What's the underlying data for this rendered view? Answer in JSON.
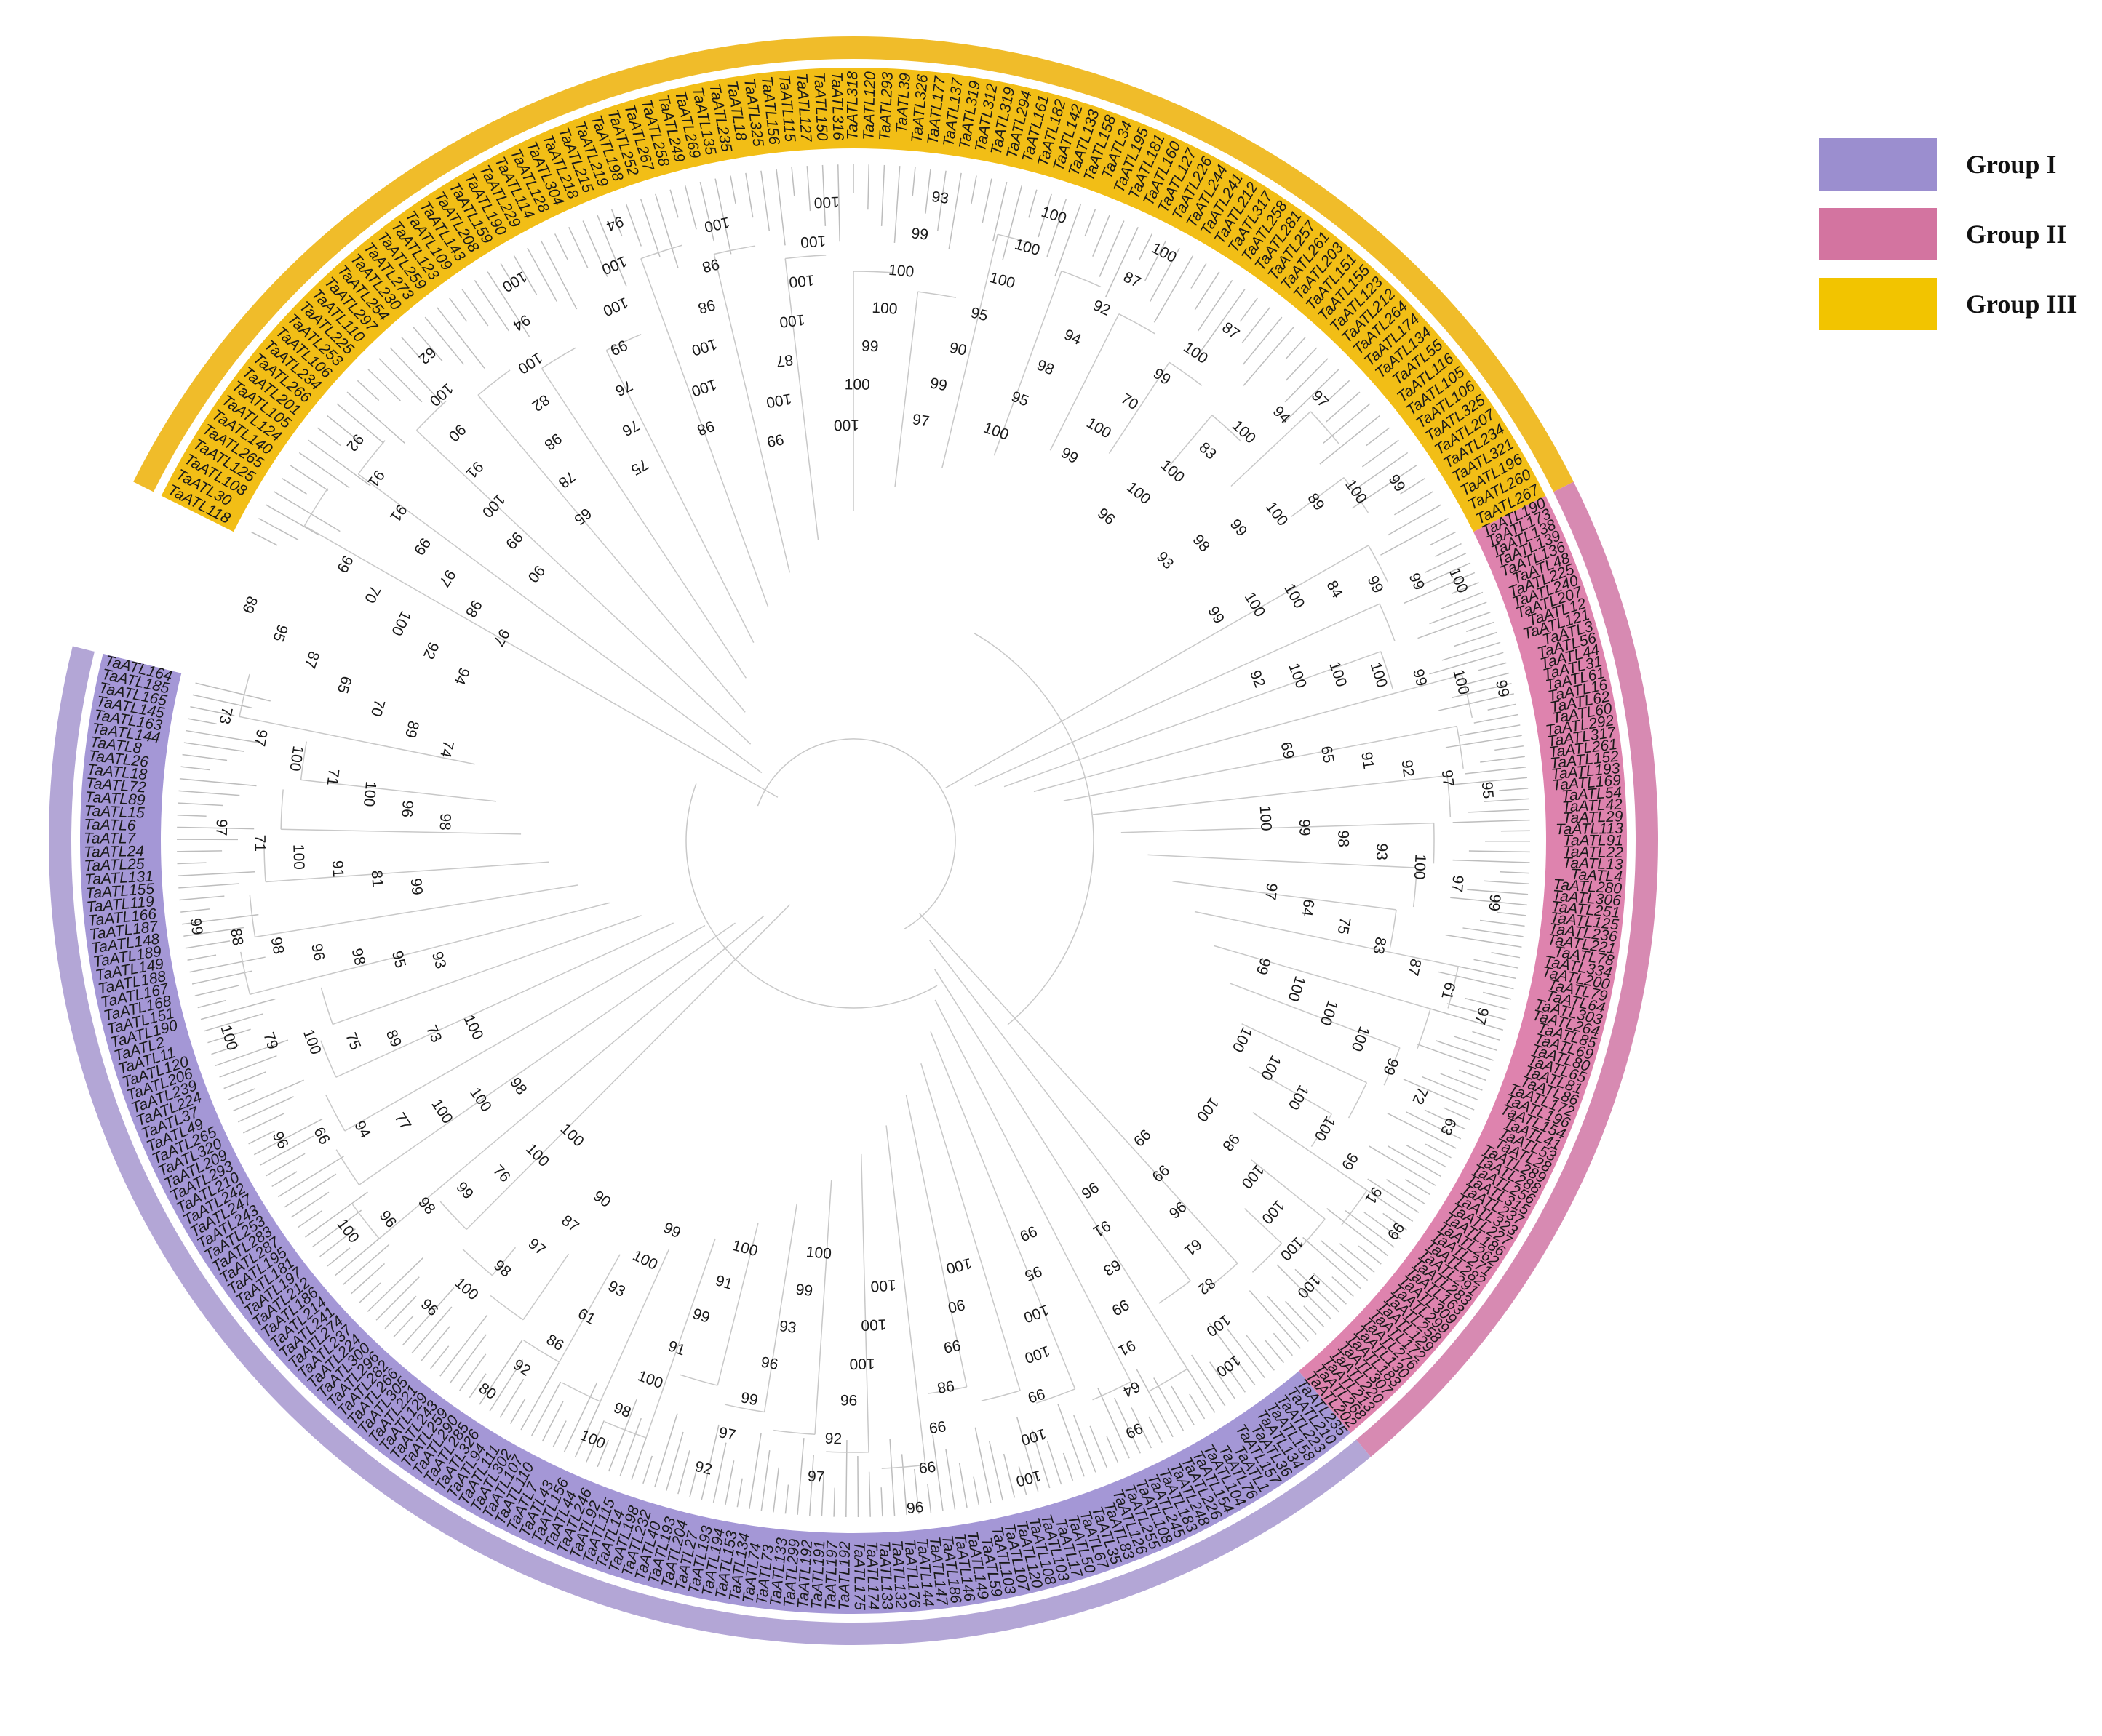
{
  "groups": [
    {
      "label": "Group I",
      "color": "#9b8ecf",
      "ring_color": "#b3a6d6",
      "band_color": "#a497d6"
    },
    {
      "label": "Group II",
      "color": "#d374a0",
      "ring_color": "#d78ab2",
      "band_color": "#de83ae"
    },
    {
      "label": "Group III",
      "color": "#f2c400",
      "ring_color": "#f0bc2a",
      "band_color": "#f2be16"
    }
  ],
  "clades": [
    {
      "group": 2,
      "tips": [
        "TaATL118",
        "TaATL30",
        "TaATL108",
        "TaATL125",
        "TaATL265",
        "TaATL140",
        "TaATL124",
        "TaATL105",
        "TaATL201",
        "TaATL266",
        "TaATL234",
        "TaATL106",
        "TaATL253",
        "TaATL225",
        "TaATL110",
        "TaATL297",
        "TaATL254",
        "TaATL230",
        "TaATL273",
        "TaATL259",
        "TaATL123",
        "TaATL109",
        "TaATL143",
        "TaATL208",
        "TaATL159",
        "TaATL190",
        "TaATL229",
        "TaATL114",
        "TaATL128",
        "TaATL304",
        "TaATL218",
        "TaATL215",
        "TaATL219",
        "TaATL198",
        "TaATL252",
        "TaATL267",
        "TaATL258",
        "TaATL249",
        "TaATL269",
        "TaATL135",
        "TaATL235",
        "TaATL18",
        "TaATL325",
        "TaATL156",
        "TaATL115",
        "TaATL127",
        "TaATL150",
        "TaATL316",
        "TaATL318",
        "TaATL120",
        "TaATL293",
        "TaATL39",
        "TaATL326",
        "TaATL177",
        "TaATL137",
        "TaATL319",
        "TaATL312",
        "TaATL319",
        "TaATL294",
        "TaATL161",
        "TaATL182",
        "TaATL142",
        "TaATL133",
        "TaATL158",
        "TaATL34",
        "TaATL195",
        "TaATL181",
        "TaATL160",
        "TaATL127",
        "TaATL226",
        "TaATL244",
        "TaATL241",
        "TaATL212",
        "TaATL317",
        "TaATL258",
        "TaATL281",
        "TaATL257",
        "TaATL261",
        "TaATL203",
        "TaATL151",
        "TaATL155",
        "TaATL123",
        "TaATL212",
        "TaATL264",
        "TaATL174",
        "TaATL134",
        "TaATL55",
        "TaATL116",
        "TaATL105",
        "TaATL106",
        "TaATL325",
        "TaATL207",
        "TaATL234",
        "TaATL321",
        "TaATL196",
        "TaATL260",
        "TaATL267"
      ]
    },
    {
      "group": 1,
      "tips": [
        "TaATL190",
        "TaATL173",
        "TaATL138",
        "TaATL139",
        "TaATL136",
        "TaATL48",
        "TaATL225",
        "TaATL240",
        "TaATL207",
        "TaATL12",
        "TaATL121",
        "TaATL3",
        "TaATL56",
        "TaATL44",
        "TaATL31",
        "TaATL61",
        "TaATL16",
        "TaATL62",
        "TaATL60",
        "TaATL292",
        "TaATL317",
        "TaATL261",
        "TaATL152",
        "TaATL193",
        "TaATL169",
        "TaATL54",
        "TaATL42",
        "TaATL29",
        "TaATL113",
        "TaATL91",
        "TaATL22",
        "TaATL13",
        "TaATL4",
        "TaATL280",
        "TaATL306",
        "TaATL251",
        "TaATL125",
        "TaATL236",
        "TaATL221",
        "TaATL78",
        "TaATL334",
        "TaATL200",
        "TaATL79",
        "TaATL64",
        "TaATL303",
        "TaATL264",
        "TaATL85",
        "TaATL69",
        "TaATL80",
        "TaATL65",
        "TaATL81",
        "TaATL86",
        "TaATL172",
        "TaATL196",
        "TaATL154",
        "TaATL41",
        "TaATL53",
        "TaATL28",
        "TaATL289",
        "TaATL288",
        "TaATL256",
        "TaATL315",
        "TaATL237",
        "TaATL323",
        "TaATL227",
        "TaATL186",
        "TaATL262",
        "TaATL271",
        "TaATL282",
        "TaATL291",
        "TaATL283",
        "TaATL163",
        "TaATL309",
        "TaATL299",
        "TaATL258",
        "TaATL129",
        "TaATL172",
        "TaATL276",
        "TaATL130",
        "TaATL183",
        "TaATL307",
        "TaATL220",
        "TaATL213",
        "TaATL268",
        "TaATL202"
      ]
    },
    {
      "group": 0,
      "tips": [
        "TaATL235",
        "TaATL210",
        "TaATL223",
        "TaATL158",
        "TaATL134",
        "TaATL36",
        "TaATL157",
        "TaATL1",
        "TaATL76",
        "TaATL104",
        "TaATL154",
        "TaATL226",
        "TaATL248",
        "TaATL183",
        "TaATL245",
        "TaATL108",
        "TaATL255",
        "TaATL126",
        "TaATL83",
        "TaATL35",
        "TaATL67",
        "TaATL50",
        "TaATL17",
        "TaATL103",
        "TaATL108",
        "TaATL120",
        "TaATL107",
        "TaATL103",
        "TaATL59",
        "TaATL149",
        "TaATL146",
        "TaATL186",
        "TaATL147",
        "TaATL144",
        "TaATL176",
        "TaATL132",
        "TaATL133",
        "TaATL174",
        "TaATL175",
        "TaATL192",
        "TaATL197",
        "TaATL191",
        "TaATL192",
        "TaATL299",
        "TaATL133",
        "TaATL73",
        "TaATL74",
        "TaATL134",
        "TaATL153",
        "TaATL194",
        "TaATL193",
        "TaATL27",
        "TaATL204",
        "TaATL193",
        "TaATL40",
        "TaATL232",
        "TaATL198",
        "TaATL14",
        "TaATL115",
        "TaATL92",
        "TaATL246",
        "TaATL44",
        "TaATL156",
        "TaATL43",
        "TaATL7",
        "TaATL110",
        "TaATL107",
        "TaATL302",
        "TaATL111",
        "TaATL94",
        "TaATL326",
        "TaATL285",
        "TaATL290",
        "TaATL259",
        "TaATL243",
        "TaATL129",
        "TaATL221",
        "TaATL305",
        "TaATL266",
        "TaATL282",
        "TaATL296",
        "TaATL300",
        "TaATL224",
        "TaATL237",
        "TaATL274",
        "TaATL241",
        "TaATL214",
        "TaATL186",
        "TaATL212",
        "TaATL197",
        "TaATL181",
        "TaATL195",
        "TaATL287",
        "TaATL283",
        "TaATL253",
        "TaATL243",
        "TaATL247",
        "TaATL242",
        "TaATL210",
        "TaATL293",
        "TaATL209",
        "TaATL320",
        "TaATL265",
        "TaATL49",
        "TaATL37",
        "TaATL224",
        "TaATL239",
        "TaATL206",
        "TaATL120",
        "TaATL11",
        "TaATL2",
        "TaATL190",
        "TaATL151",
        "TaATL168",
        "TaATL167",
        "TaATL188",
        "TaATL149",
        "TaATL189",
        "TaATL148",
        "TaATL187",
        "TaATL166",
        "TaATL119",
        "TaATL155",
        "TaATL131",
        "TaATL25",
        "TaATL24",
        "TaATL7",
        "TaATL6",
        "TaATL15",
        "TaATL89",
        "TaATL72",
        "TaATL18",
        "TaATL26",
        "TaATL8",
        "TaATL144",
        "TaATL163",
        "TaATL145",
        "TaATL165",
        "TaATL185",
        "TaATL164"
      ]
    }
  ],
  "bootstrap_values": [
    "97",
    "98",
    "97",
    "99",
    "91",
    "91",
    "92",
    "90",
    "99",
    "100",
    "91",
    "90",
    "100",
    "62",
    "65",
    "78",
    "98",
    "82",
    "100",
    "94",
    "100",
    "75",
    "76",
    "76",
    "99",
    "100",
    "100",
    "94",
    "98",
    "100",
    "100",
    "98",
    "98",
    "100",
    "99",
    "100",
    "87",
    "100",
    "100",
    "100",
    "100",
    "100",
    "100",
    "99",
    "100",
    "100",
    "99",
    "93",
    "97",
    "99",
    "90",
    "95",
    "100",
    "100",
    "100",
    "100",
    "95",
    "98",
    "94",
    "92",
    "87",
    "100",
    "99",
    "100",
    "70",
    "99",
    "100",
    "87",
    "96",
    "100",
    "100",
    "83",
    "100",
    "94",
    "97",
    "93",
    "98",
    "99",
    "100",
    "89",
    "100",
    "99",
    "99",
    "100",
    "100",
    "84",
    "99",
    "99",
    "100",
    "92",
    "100",
    "100",
    "100",
    "99",
    "100",
    "99",
    "69",
    "65",
    "91",
    "92",
    "97",
    "95",
    "100",
    "99",
    "98",
    "93",
    "100",
    "97",
    "99",
    "97",
    "64",
    "75",
    "83",
    "87",
    "61",
    "97",
    "99",
    "100",
    "100",
    "100",
    "99",
    "72",
    "63",
    "100",
    "100",
    "100",
    "100",
    "99",
    "91",
    "99",
    "100",
    "98",
    "100",
    "100",
    "100",
    "100",
    "99",
    "99",
    "96",
    "61",
    "82",
    "100",
    "100",
    "96",
    "91",
    "63",
    "99",
    "91",
    "64",
    "99",
    "99",
    "95",
    "100",
    "100",
    "99",
    "100",
    "100",
    "100",
    "90",
    "99",
    "98",
    "99",
    "99",
    "96",
    "100",
    "100",
    "100",
    "96",
    "92",
    "97",
    "100",
    "99",
    "93",
    "96",
    "99",
    "97",
    "92",
    "100",
    "91",
    "99",
    "91",
    "100",
    "98",
    "100",
    "99",
    "100",
    "93",
    "61",
    "86",
    "92",
    "80",
    "90",
    "87",
    "97",
    "98",
    "100",
    "96",
    "100",
    "100",
    "76",
    "99",
    "98",
    "96",
    "100",
    "98",
    "100",
    "100",
    "77",
    "94",
    "66",
    "96",
    "100",
    "73",
    "89",
    "75",
    "100",
    "79",
    "100",
    "93",
    "95",
    "98",
    "96",
    "98",
    "88",
    "99",
    "99",
    "81",
    "91",
    "100",
    "71",
    "97",
    "98",
    "96",
    "100",
    "71",
    "100",
    "97",
    "73",
    "74",
    "89",
    "70",
    "65",
    "87",
    "95",
    "89",
    "94",
    "92",
    "100",
    "70",
    "99"
  ]
}
